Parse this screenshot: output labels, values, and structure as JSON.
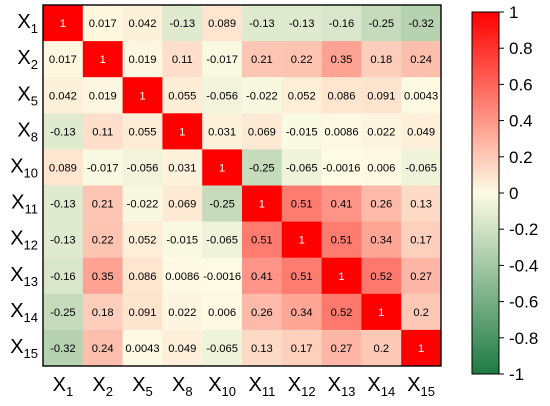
{
  "chart_data": {
    "type": "heatmap",
    "labels": [
      {
        "base": "X",
        "sub": "1"
      },
      {
        "base": "X",
        "sub": "2"
      },
      {
        "base": "X",
        "sub": "5"
      },
      {
        "base": "X",
        "sub": "8"
      },
      {
        "base": "X",
        "sub": "10"
      },
      {
        "base": "X",
        "sub": "11"
      },
      {
        "base": "X",
        "sub": "12"
      },
      {
        "base": "X",
        "sub": "13"
      },
      {
        "base": "X",
        "sub": "14"
      },
      {
        "base": "X",
        "sub": "15"
      }
    ],
    "matrix": [
      [
        "1",
        "0.017",
        "0.042",
        "-0.13",
        "0.089",
        "-0.13",
        "-0.13",
        "-0.16",
        "-0.25",
        "-0.32"
      ],
      [
        "0.017",
        "1",
        "0.019",
        "0.11",
        "-0.017",
        "0.21",
        "0.22",
        "0.35",
        "0.18",
        "0.24"
      ],
      [
        "0.042",
        "0.019",
        "1",
        "0.055",
        "-0.056",
        "-0.022",
        "0.052",
        "0.086",
        "0.091",
        "0.0043"
      ],
      [
        "-0.13",
        "0.11",
        "0.055",
        "1",
        "0.031",
        "0.069",
        "-0.015",
        "0.0086",
        "0.022",
        "0.049"
      ],
      [
        "0.089",
        "-0.017",
        "-0.056",
        "0.031",
        "1",
        "-0.25",
        "-0.065",
        "-0.0016",
        "0.006",
        "-0.065"
      ],
      [
        "-0.13",
        "0.21",
        "-0.022",
        "0.069",
        "-0.25",
        "1",
        "0.51",
        "0.41",
        "0.26",
        "0.13"
      ],
      [
        "-0.13",
        "0.22",
        "0.052",
        "-0.015",
        "-0.065",
        "0.51",
        "1",
        "0.51",
        "0.34",
        "0.17"
      ],
      [
        "-0.16",
        "0.35",
        "0.086",
        "0.0086",
        "-0.0016",
        "0.41",
        "0.51",
        "1",
        "0.52",
        "0.27"
      ],
      [
        "-0.25",
        "0.18",
        "0.091",
        "0.022",
        "0.006",
        "0.26",
        "0.34",
        "0.52",
        "1",
        "0.2"
      ],
      [
        "-0.32",
        "0.24",
        "0.0043",
        "0.049",
        "-0.065",
        "0.13",
        "0.17",
        "0.27",
        "0.2",
        "1"
      ]
    ],
    "colorbar": {
      "min": -1,
      "max": 1,
      "ticks": [
        "1",
        "0.8",
        "0.6",
        "0.4",
        "0.2",
        "0",
        "-0.2",
        "-0.4",
        "-0.6",
        "-0.8",
        "-1"
      ],
      "colors": {
        "negative": "#1e7a45",
        "mid": "#fdfbe4",
        "positive": "#ff0000"
      }
    },
    "grid": false,
    "legend_placement": "right"
  }
}
